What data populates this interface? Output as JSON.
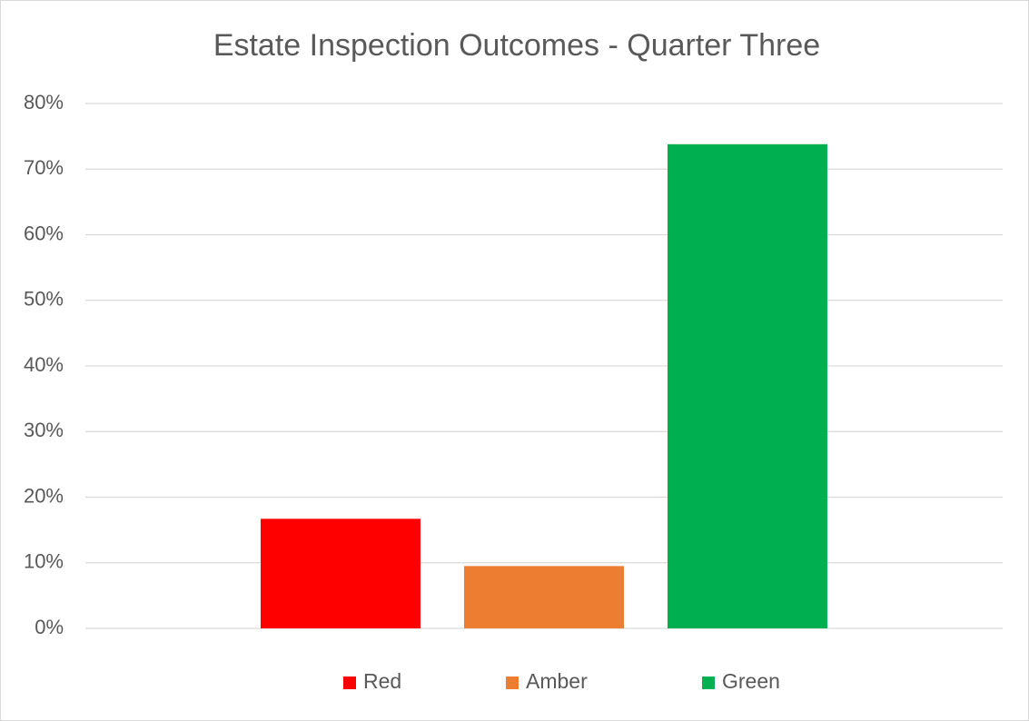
{
  "chart_data": {
    "type": "bar",
    "title": "Estate Inspection Outcomes - Quarter Three",
    "categories": [
      null
    ],
    "series": [
      {
        "name": "Red",
        "color": "#ff0000",
        "values": [
          16.7
        ]
      },
      {
        "name": "Amber",
        "color": "#ed7d31",
        "values": [
          9.5
        ]
      },
      {
        "name": "Green",
        "color": "#00b050",
        "values": [
          73.8
        ]
      }
    ],
    "ylim": [
      0,
      80
    ],
    "yticks": [
      {
        "value": 0,
        "label": "0%"
      },
      {
        "value": 10,
        "label": "10%"
      },
      {
        "value": 20,
        "label": "20%"
      },
      {
        "value": 30,
        "label": "30%"
      },
      {
        "value": 40,
        "label": "40%"
      },
      {
        "value": 50,
        "label": "50%"
      },
      {
        "value": 60,
        "label": "60%"
      },
      {
        "value": 70,
        "label": "70%"
      },
      {
        "value": 80,
        "label": "80%"
      }
    ],
    "grid": true,
    "legend": "bottom"
  }
}
